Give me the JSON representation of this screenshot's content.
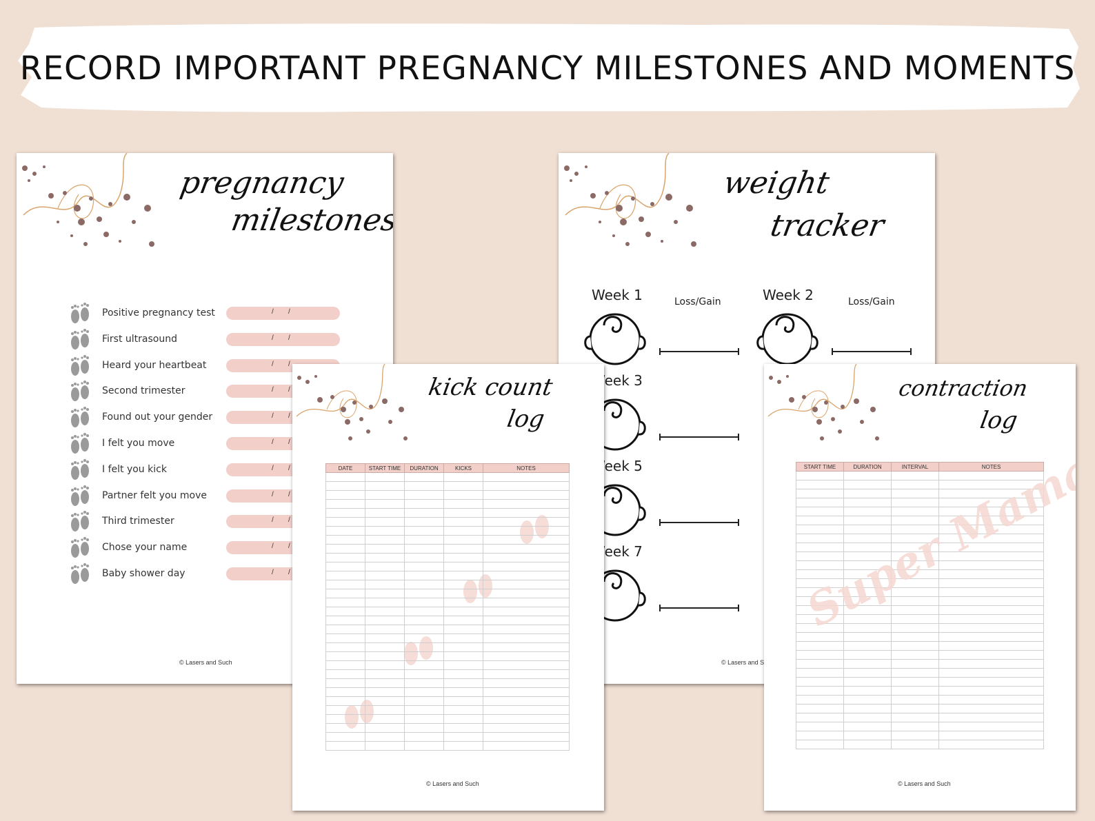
{
  "banner": {
    "title": "RECORD IMPORTANT PREGNANCY MILESTONES AND MOMENTS"
  },
  "milestones_page": {
    "title_line1": "pregnancy",
    "title_line2": "milestones",
    "items": [
      "Positive pregnancy test",
      "First ultrasound",
      "Heard your heartbeat",
      "Second trimester",
      "Found out your gender",
      "I felt you move",
      "I felt you kick",
      "Partner felt you move",
      "Third trimester",
      "Chose your name",
      "Baby shower day"
    ],
    "date_separator": "/",
    "footer": "© Lasers and Such"
  },
  "kick_page": {
    "title_line1": "kick count",
    "title_line2": "log",
    "columns": [
      "DATE",
      "START TIME",
      "DURATION",
      "KICKS",
      "NOTES"
    ],
    "footer": "© Lasers and Such"
  },
  "weight_page": {
    "title_line1": "weight",
    "title_line2": "tracker",
    "weeks": [
      "Week 1",
      "Week 3",
      "Week 5",
      "Week 7"
    ],
    "weeks_right": [
      "Week 2"
    ],
    "loss_gain_label": "Loss/Gain",
    "footer": "© Lasers and Such"
  },
  "contraction_page": {
    "title_line1": "contraction",
    "title_line2": "log",
    "columns": [
      "START TIME",
      "DURATION",
      "INTERVAL",
      "NOTES"
    ],
    "watermark": "Super Mama",
    "footer": "© Lasers and Such"
  },
  "colors": {
    "background": "#f0dfd3",
    "pink": "#f3cfca",
    "dots": "#8b6a66",
    "swirl": "#d9a46c"
  }
}
